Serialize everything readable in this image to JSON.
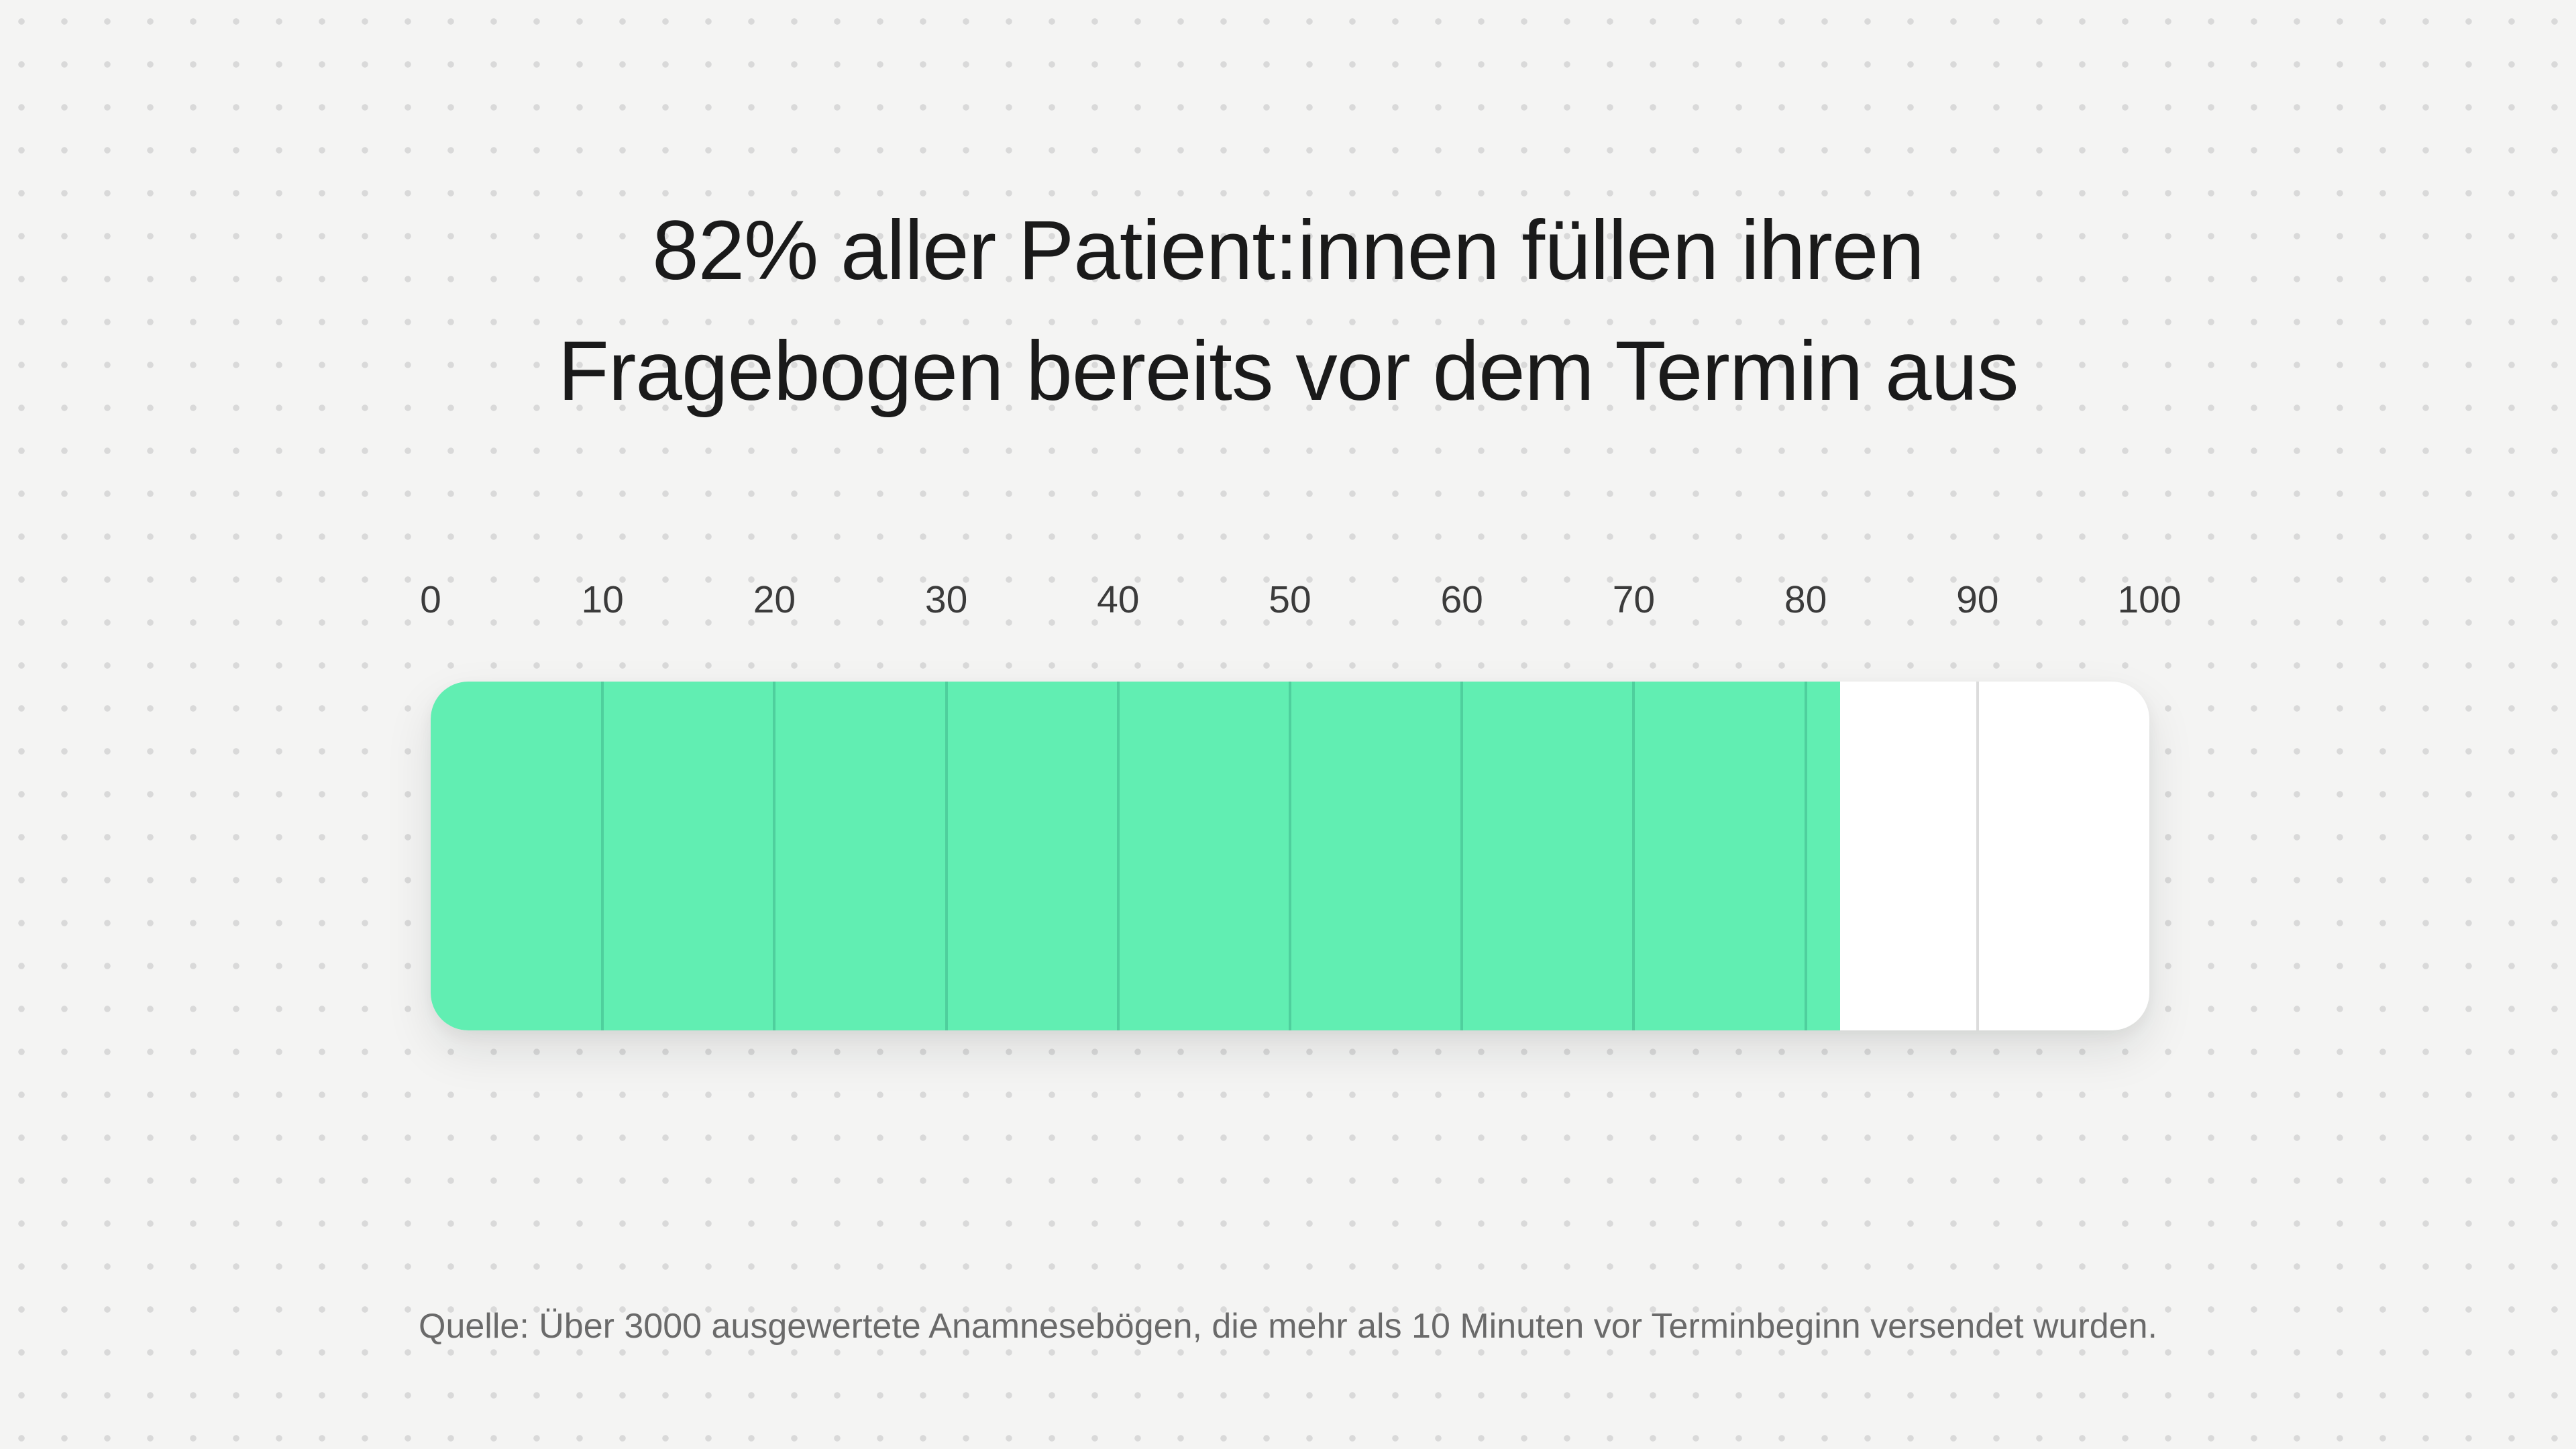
{
  "page": {
    "background_color": "#F4F4F3",
    "dot_color": "#D9D9D9"
  },
  "title": {
    "line1": "82% aller Patient:innen füllen ihren",
    "line2": "Fragebogen bereits vor dem Termin aus",
    "full": "82% aller Patient:innen füllen ihren Fragebogen bereits vor dem Termin aus"
  },
  "source": {
    "text": "Quelle: Über 3000 ausgewertete Anamnesebögen, die mehr als 10 Minuten vor Terminbeginn versendet wurden."
  },
  "chart_data": {
    "type": "bar",
    "orientation": "horizontal",
    "title": "82% aller Patient:innen füllen ihren Fragebogen bereits vor dem Termin aus",
    "value": 82,
    "values": [
      82
    ],
    "unit": "%",
    "xlabel": "",
    "ylabel": "",
    "xlim": [
      0,
      100
    ],
    "x_ticks": [
      0,
      10,
      20,
      30,
      40,
      50,
      60,
      70,
      80,
      90,
      100
    ],
    "grid": true,
    "legend": false,
    "colors": {
      "fill": "#61EEB2",
      "track": "#FFFFFF",
      "gridline_on_fill": "#4FCF9D",
      "gridline_on_track": "#DCDCDC",
      "tick_label": "#3B3B3B",
      "title_text": "#1A1A1A",
      "source_text": "#6A6A6A"
    },
    "source": "Quelle: Über 3000 ausgewertete Anamnesebögen, die mehr als 10 Minuten vor Terminbeginn versendet wurden."
  }
}
